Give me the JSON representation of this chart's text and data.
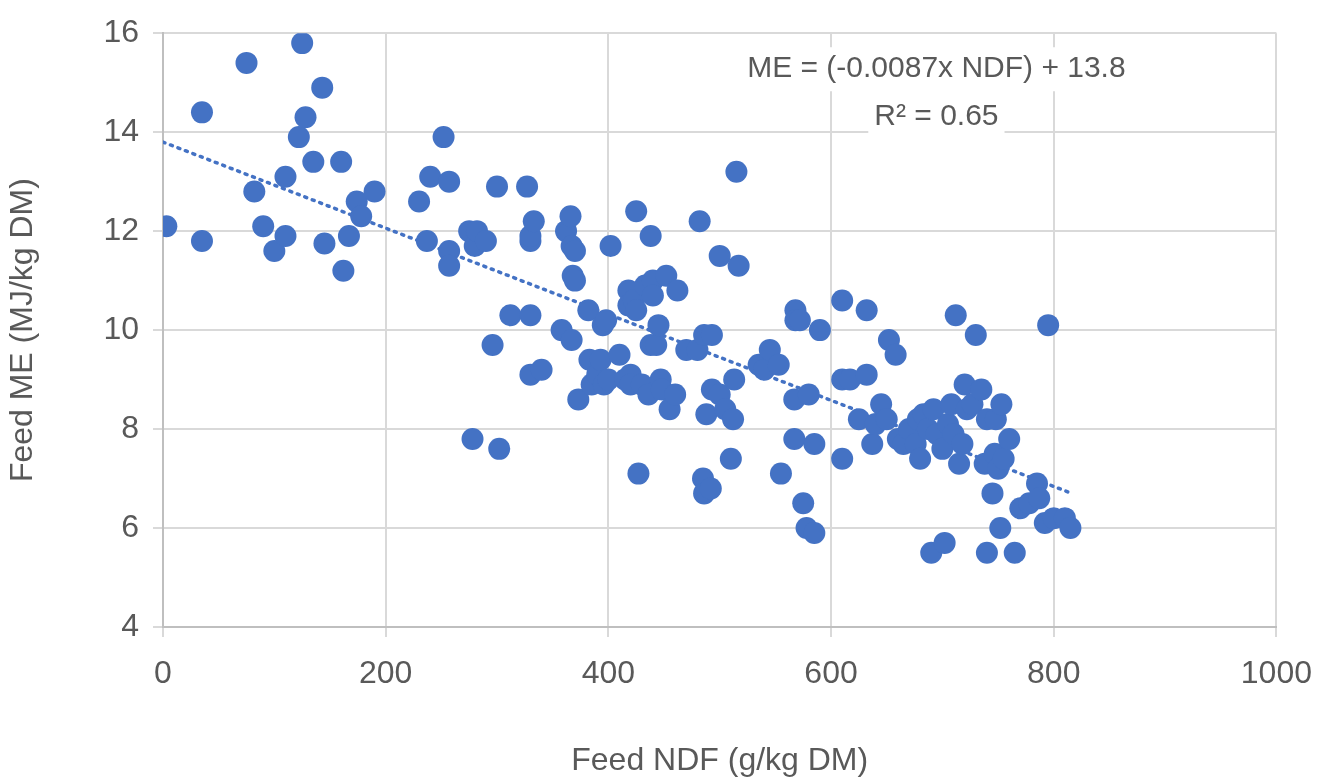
{
  "chart_data": {
    "type": "scatter",
    "xlabel": "Feed NDF (g/kg DM)",
    "ylabel": "Feed ME (MJ/kg DM)",
    "xlim": [
      0,
      1000
    ],
    "xticks": [
      0,
      200,
      400,
      600,
      800,
      1000
    ],
    "ylim": [
      4,
      16
    ],
    "yticks": [
      4,
      6,
      8,
      10,
      12,
      14,
      16
    ],
    "grid": true,
    "legend": false,
    "annotations": [
      "ME = (-0.0087x NDF) + 13.8",
      "R² = 0.65"
    ],
    "series": [
      {
        "type": "scatter",
        "color": "#4472c4",
        "marker": "circle",
        "x": [
          3,
          35,
          35,
          75,
          82,
          90,
          100,
          110,
          110,
          122,
          125,
          128,
          135,
          143,
          145,
          160,
          162,
          167,
          174,
          178,
          190,
          230,
          237,
          240,
          252,
          257,
          257,
          257,
          275,
          278,
          280,
          282,
          290,
          296,
          300,
          302,
          312,
          327,
          330,
          330,
          330,
          330,
          333,
          340,
          358,
          362,
          366,
          367,
          367,
          368,
          370,
          370,
          373,
          382,
          383,
          385,
          390,
          393,
          395,
          396,
          398,
          400,
          402,
          410,
          415,
          418,
          418,
          420,
          420,
          423,
          425,
          425,
          427,
          430,
          433,
          436,
          438,
          438,
          440,
          440,
          443,
          445,
          447,
          448,
          452,
          455,
          460,
          462,
          470,
          480,
          482,
          485,
          486,
          486,
          488,
          493,
          492,
          493,
          500,
          500,
          505,
          510,
          512,
          513,
          515,
          517,
          535,
          540,
          545,
          553,
          555,
          567,
          567,
          568,
          568,
          572,
          575,
          578,
          580,
          585,
          585,
          590,
          610,
          610,
          610,
          617,
          625,
          632,
          632,
          637,
          640,
          645,
          650,
          652,
          658,
          660,
          665,
          670,
          676,
          678,
          680,
          683,
          687,
          690,
          692,
          695,
          700,
          702,
          705,
          708,
          710,
          712,
          715,
          718,
          720,
          722,
          727,
          730,
          735,
          738,
          740,
          740,
          745,
          747,
          748,
          750,
          752,
          753,
          755,
          760,
          765,
          770,
          778,
          785,
          787,
          792,
          795,
          800,
          810,
          815
        ],
        "values": [
          12.1,
          11.8,
          14.4,
          15.4,
          12.8,
          12.1,
          11.6,
          13.1,
          11.9,
          13.9,
          15.8,
          14.3,
          13.4,
          14.9,
          11.75,
          13.4,
          11.2,
          11.9,
          12.6,
          12.3,
          12.8,
          12.6,
          11.8,
          13.1,
          13.9,
          13.0,
          11.6,
          11.3,
          12.0,
          7.8,
          11.7,
          12.0,
          11.8,
          9.7,
          12.9,
          7.6,
          10.3,
          12.9,
          11.8,
          11.9,
          10.3,
          9.1,
          12.2,
          9.2,
          10.0,
          12.0,
          12.3,
          9.8,
          11.7,
          11.1,
          11.6,
          11.0,
          8.6,
          10.4,
          9.4,
          8.9,
          9.1,
          9.4,
          10.1,
          8.9,
          10.2,
          9.0,
          11.7,
          9.5,
          9.0,
          10.8,
          10.5,
          9.1,
          8.9,
          10.6,
          12.4,
          10.4,
          7.1,
          8.9,
          10.9,
          8.7,
          9.7,
          11.9,
          11.0,
          10.7,
          9.7,
          10.1,
          9.0,
          8.8,
          11.1,
          8.4,
          8.7,
          10.8,
          9.6,
          9.6,
          12.2,
          7.0,
          6.7,
          9.9,
          8.3,
          9.9,
          6.8,
          8.8,
          11.5,
          8.7,
          8.4,
          7.4,
          8.2,
          9.0,
          13.2,
          11.3,
          9.3,
          9.2,
          9.6,
          9.3,
          7.1,
          8.6,
          7.8,
          10.4,
          10.2,
          10.2,
          6.5,
          6.0,
          8.7,
          5.9,
          7.7,
          10.0,
          10.6,
          9.0,
          7.4,
          9.0,
          8.2,
          10.4,
          9.1,
          7.7,
          8.1,
          8.5,
          8.2,
          9.8,
          9.5,
          7.8,
          7.7,
          8.0,
          7.7,
          8.2,
          7.4,
          8.3,
          8.0,
          5.5,
          8.4,
          7.9,
          7.6,
          5.7,
          8.1,
          8.5,
          7.9,
          10.3,
          7.3,
          7.7,
          8.9,
          8.4,
          8.5,
          9.9,
          8.8,
          7.3,
          5.5,
          8.2,
          6.7,
          7.5,
          8.2,
          7.2,
          6.0,
          8.5,
          7.4,
          7.8,
          5.5,
          6.4,
          6.5,
          6.9,
          6.6,
          6.1,
          10.1,
          6.2,
          6.2,
          6.0
        ]
      },
      {
        "type": "line",
        "color": "#4472c4",
        "marker": "none",
        "line_style": "dotted",
        "x": [
          0,
          815
        ],
        "values": [
          13.8,
          6.71
        ]
      }
    ]
  }
}
